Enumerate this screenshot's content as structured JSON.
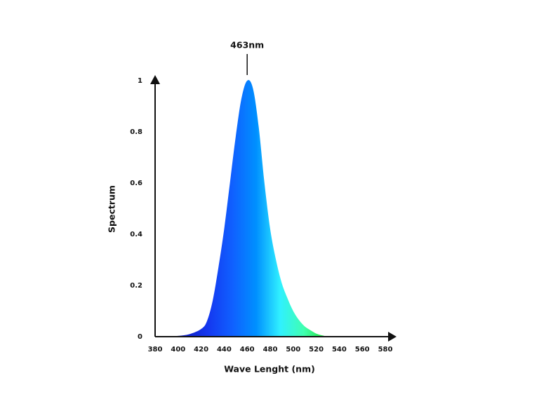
{
  "chart_data": {
    "type": "area",
    "x_label": "Wave Lenght (nm)",
    "y_label": "Spectrum",
    "annotation": "463nm",
    "x": [
      385,
      390,
      400,
      410,
      420,
      425,
      430,
      435,
      440,
      445,
      450,
      455,
      460,
      465,
      470,
      475,
      480,
      485,
      490,
      495,
      500,
      505,
      510,
      515,
      520,
      525,
      530
    ],
    "values": [
      0,
      0.001,
      0.003,
      0.01,
      0.03,
      0.06,
      0.14,
      0.27,
      0.42,
      0.6,
      0.78,
      0.93,
      1.0,
      0.97,
      0.82,
      0.6,
      0.42,
      0.3,
      0.21,
      0.15,
      0.1,
      0.065,
      0.04,
      0.025,
      0.012,
      0.005,
      0
    ],
    "colors": [
      "#0a0a70",
      "#1020c8",
      "#1438f0",
      "#1060ff",
      "#0090ff",
      "#30f0ff",
      "#40ffb0",
      "#20e030"
    ],
    "xlim": [
      380,
      580
    ],
    "xticks": [
      380,
      400,
      420,
      440,
      460,
      480,
      500,
      520,
      540,
      560,
      580
    ],
    "ylim": [
      0,
      1
    ],
    "yticks": [
      0,
      0.2,
      0.4,
      0.6,
      0.8,
      1
    ]
  }
}
